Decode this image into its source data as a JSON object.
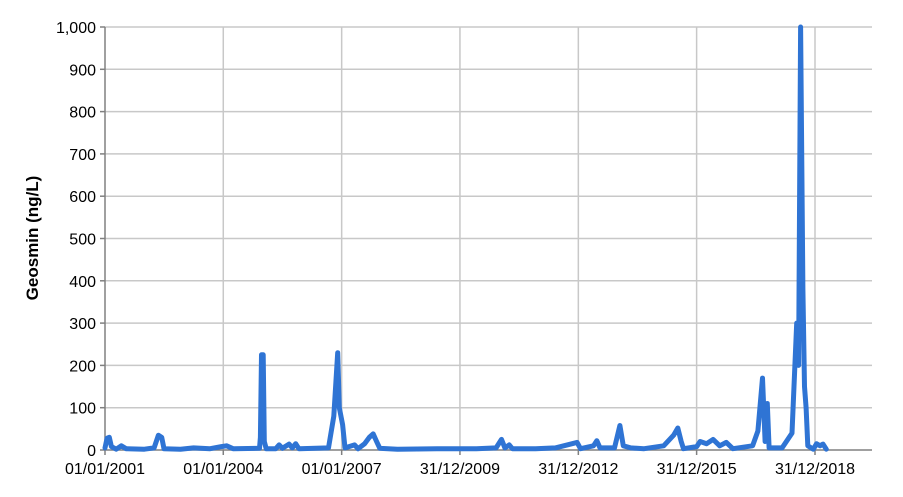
{
  "chart_data": {
    "type": "line",
    "title": "",
    "xlabel": "",
    "ylabel": "Geosmin (ng/L)",
    "ylim": [
      0,
      1000
    ],
    "yticks": [
      "0",
      "100",
      "200",
      "300",
      "400",
      "500",
      "600",
      "700",
      "800",
      "900",
      "1,000"
    ],
    "xlim": [
      "2001-01-01",
      "2021-03-01"
    ],
    "xticks": [
      {
        "date": "2001-01-01",
        "label": "01/01/2001"
      },
      {
        "date": "2004-01-01",
        "label": "01/01/2004"
      },
      {
        "date": "2007-01-01",
        "label": "01/01/2007"
      },
      {
        "date": "2009-12-31",
        "label": "31/12/2009"
      },
      {
        "date": "2012-12-31",
        "label": "31/12/2012"
      },
      {
        "date": "2015-12-31",
        "label": "31/12/2015"
      },
      {
        "date": "2018-12-31",
        "label": "31/12/2018"
      }
    ],
    "grid": true,
    "line_color": "#2f74d4",
    "series": [
      {
        "points": [
          [
            "2001-01-01",
            5
          ],
          [
            "2001-01-20",
            28
          ],
          [
            "2001-02-10",
            30
          ],
          [
            "2001-03-01",
            8
          ],
          [
            "2001-04-15",
            2
          ],
          [
            "2001-06-01",
            10
          ],
          [
            "2001-07-15",
            3
          ],
          [
            "2002-01-01",
            2
          ],
          [
            "2002-04-01",
            5
          ],
          [
            "2002-05-10",
            35
          ],
          [
            "2002-06-10",
            30
          ],
          [
            "2002-07-01",
            3
          ],
          [
            "2002-12-01",
            2
          ],
          [
            "2003-04-01",
            5
          ],
          [
            "2003-09-01",
            3
          ],
          [
            "2003-12-15",
            8
          ],
          [
            "2004-02-01",
            10
          ],
          [
            "2004-04-01",
            3
          ],
          [
            "2004-12-01",
            4
          ],
          [
            "2004-12-10",
            30
          ],
          [
            "2004-12-20",
            225
          ],
          [
            "2005-01-05",
            225
          ],
          [
            "2005-01-15",
            20
          ],
          [
            "2005-02-01",
            3
          ],
          [
            "2005-05-01",
            3
          ],
          [
            "2005-06-01",
            12
          ],
          [
            "2005-07-01",
            4
          ],
          [
            "2005-09-01",
            14
          ],
          [
            "2005-10-01",
            5
          ],
          [
            "2005-11-01",
            15
          ],
          [
            "2005-12-01",
            3
          ],
          [
            "2006-09-01",
            5
          ],
          [
            "2006-10-20",
            80
          ],
          [
            "2006-11-25",
            230
          ],
          [
            "2006-12-10",
            100
          ],
          [
            "2007-01-10",
            60
          ],
          [
            "2007-02-01",
            5
          ],
          [
            "2007-05-01",
            12
          ],
          [
            "2007-06-01",
            3
          ],
          [
            "2007-08-01",
            15
          ],
          [
            "2007-09-15",
            30
          ],
          [
            "2007-10-20",
            38
          ],
          [
            "2007-11-20",
            20
          ],
          [
            "2007-12-20",
            4
          ],
          [
            "2008-06-01",
            2
          ],
          [
            "2009-06-01",
            3
          ],
          [
            "2010-06-01",
            3
          ],
          [
            "2010-12-01",
            5
          ],
          [
            "2011-01-20",
            25
          ],
          [
            "2011-02-20",
            5
          ],
          [
            "2011-04-01",
            12
          ],
          [
            "2011-05-01",
            3
          ],
          [
            "2011-12-01",
            3
          ],
          [
            "2012-06-01",
            5
          ],
          [
            "2012-12-20",
            18
          ],
          [
            "2013-01-20",
            3
          ],
          [
            "2013-05-20",
            10
          ],
          [
            "2013-06-20",
            22
          ],
          [
            "2013-07-20",
            5
          ],
          [
            "2013-12-01",
            5
          ],
          [
            "2014-01-20",
            58
          ],
          [
            "2014-02-20",
            10
          ],
          [
            "2014-05-01",
            5
          ],
          [
            "2014-09-01",
            3
          ],
          [
            "2015-03-01",
            10
          ],
          [
            "2015-06-01",
            35
          ],
          [
            "2015-07-10",
            52
          ],
          [
            "2015-08-10",
            20
          ],
          [
            "2015-09-01",
            3
          ],
          [
            "2016-01-01",
            8
          ],
          [
            "2016-02-01",
            20
          ],
          [
            "2016-04-01",
            15
          ],
          [
            "2016-06-01",
            25
          ],
          [
            "2016-08-01",
            10
          ],
          [
            "2016-10-01",
            18
          ],
          [
            "2016-12-01",
            3
          ],
          [
            "2017-06-01",
            10
          ],
          [
            "2017-07-20",
            45
          ],
          [
            "2017-09-01",
            170
          ],
          [
            "2017-09-25",
            20
          ],
          [
            "2017-10-15",
            110
          ],
          [
            "2017-11-01",
            5
          ],
          [
            "2018-03-01",
            5
          ],
          [
            "2018-06-01",
            40
          ],
          [
            "2018-07-15",
            300
          ],
          [
            "2018-08-01",
            200
          ],
          [
            "2018-08-20",
            1000
          ],
          [
            "2018-09-10",
            380
          ],
          [
            "2018-09-25",
            150
          ],
          [
            "2018-10-10",
            100
          ],
          [
            "2018-10-25",
            10
          ],
          [
            "2018-12-15",
            2
          ],
          [
            "2019-01-15",
            15
          ],
          [
            "2019-02-15",
            10
          ],
          [
            "2019-03-15",
            14
          ],
          [
            "2019-04-15",
            2
          ]
        ]
      }
    ]
  }
}
